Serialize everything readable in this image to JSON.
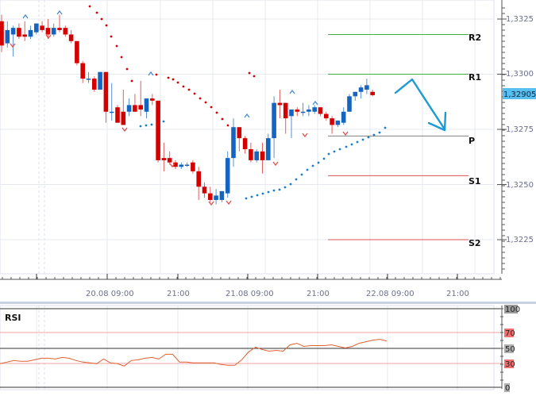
{
  "chart_data": [
    {
      "type": "candlestick",
      "title": "",
      "xlabel": "",
      "ylabel": "",
      "ylim": [
        1.3205,
        1.3335
      ],
      "y_ticks": [
        "1,3325",
        "1,3300",
        "1,3275",
        "1,3250",
        "1,3225"
      ],
      "y_tick_values": [
        1.3325,
        1.33,
        1.3275,
        1.325,
        1.3225
      ],
      "x_tick_labels": [
        "20.08 09:00",
        "21:00",
        "21.08 09:00",
        "21:00",
        "22.08 09:00",
        "21:00"
      ],
      "current_price": "1,32905",
      "colors": {
        "bull": "#1565c0",
        "bear": "#d40000",
        "sar_bear": "#d40000",
        "sar_bull": "#1a7fc4"
      },
      "candles": [
        {
          "o": 1.3324,
          "h": 1.3327,
          "l": 1.331,
          "c": 1.3313
        },
        {
          "o": 1.3314,
          "h": 1.3324,
          "l": 1.3312,
          "c": 1.332
        },
        {
          "o": 1.3318,
          "h": 1.3322,
          "l": 1.3308,
          "c": 1.3321
        },
        {
          "o": 1.3321,
          "h": 1.3323,
          "l": 1.3316,
          "c": 1.3317
        },
        {
          "o": 1.3318,
          "h": 1.3324,
          "l": 1.3315,
          "c": 1.3317
        },
        {
          "o": 1.3317,
          "h": 1.3322,
          "l": 1.3316,
          "c": 1.332
        },
        {
          "o": 1.3319,
          "h": 1.3323,
          "l": 1.3318,
          "c": 1.3323
        },
        {
          "o": 1.3322,
          "h": 1.3324,
          "l": 1.3319,
          "c": 1.332
        },
        {
          "o": 1.3321,
          "h": 1.3325,
          "l": 1.3316,
          "c": 1.3318
        },
        {
          "o": 1.3318,
          "h": 1.3323,
          "l": 1.3317,
          "c": 1.3321
        },
        {
          "o": 1.3321,
          "h": 1.3327,
          "l": 1.3319,
          "c": 1.332
        },
        {
          "o": 1.3321,
          "h": 1.3322,
          "l": 1.3317,
          "c": 1.3318
        },
        {
          "o": 1.3318,
          "h": 1.332,
          "l": 1.3314,
          "c": 1.3315
        },
        {
          "o": 1.3315,
          "h": 1.3315,
          "l": 1.3304,
          "c": 1.3305
        },
        {
          "o": 1.3305,
          "h": 1.3306,
          "l": 1.3296,
          "c": 1.3298
        },
        {
          "o": 1.3298,
          "h": 1.3301,
          "l": 1.3296,
          "c": 1.3298
        },
        {
          "o": 1.3298,
          "h": 1.3299,
          "l": 1.3292,
          "c": 1.3293
        },
        {
          "o": 1.3293,
          "h": 1.3301,
          "l": 1.3293,
          "c": 1.3301
        },
        {
          "o": 1.3301,
          "h": 1.3301,
          "l": 1.3278,
          "c": 1.3283
        },
        {
          "o": 1.3283,
          "h": 1.3296,
          "l": 1.3279,
          "c": 1.3283
        },
        {
          "o": 1.3285,
          "h": 1.3286,
          "l": 1.3282,
          "c": 1.3278
        },
        {
          "o": 1.3283,
          "h": 1.3293,
          "l": 1.3278,
          "c": 1.3277
        },
        {
          "o": 1.3283,
          "h": 1.3289,
          "l": 1.3281,
          "c": 1.3286
        },
        {
          "o": 1.3286,
          "h": 1.3291,
          "l": 1.3283,
          "c": 1.3283
        },
        {
          "o": 1.3286,
          "h": 1.3297,
          "l": 1.3281,
          "c": 1.3284
        },
        {
          "o": 1.3283,
          "h": 1.3289,
          "l": 1.328,
          "c": 1.3289
        },
        {
          "o": 1.3289,
          "h": 1.3291,
          "l": 1.3286,
          "c": 1.3288
        },
        {
          "o": 1.3288,
          "h": 1.3288,
          "l": 1.326,
          "c": 1.3261
        },
        {
          "o": 1.3262,
          "h": 1.3269,
          "l": 1.3256,
          "c": 1.3261
        },
        {
          "o": 1.3262,
          "h": 1.3265,
          "l": 1.3259,
          "c": 1.326
        },
        {
          "o": 1.326,
          "h": 1.3261,
          "l": 1.3257,
          "c": 1.3258
        },
        {
          "o": 1.3258,
          "h": 1.326,
          "l": 1.3257,
          "c": 1.3259
        },
        {
          "o": 1.3259,
          "h": 1.326,
          "l": 1.3258,
          "c": 1.3259
        },
        {
          "o": 1.326,
          "h": 1.3261,
          "l": 1.3255,
          "c": 1.3256
        },
        {
          "o": 1.3256,
          "h": 1.3258,
          "l": 1.3243,
          "c": 1.3249
        },
        {
          "o": 1.3249,
          "h": 1.3251,
          "l": 1.3244,
          "c": 1.3246
        },
        {
          "o": 1.3246,
          "h": 1.3249,
          "l": 1.3242,
          "c": 1.3243
        },
        {
          "o": 1.3243,
          "h": 1.3248,
          "l": 1.3241,
          "c": 1.3245
        },
        {
          "o": 1.3243,
          "h": 1.3247,
          "l": 1.3242,
          "c": 1.3247
        },
        {
          "o": 1.3246,
          "h": 1.3265,
          "l": 1.3244,
          "c": 1.3262
        },
        {
          "o": 1.3262,
          "h": 1.328,
          "l": 1.3258,
          "c": 1.3276
        },
        {
          "o": 1.3276,
          "h": 1.3276,
          "l": 1.3265,
          "c": 1.3271
        },
        {
          "o": 1.3271,
          "h": 1.3272,
          "l": 1.3264,
          "c": 1.3266
        },
        {
          "o": 1.3266,
          "h": 1.3269,
          "l": 1.326,
          "c": 1.3261
        },
        {
          "o": 1.3261,
          "h": 1.3266,
          "l": 1.326,
          "c": 1.3265
        },
        {
          "o": 1.3265,
          "h": 1.3269,
          "l": 1.3255,
          "c": 1.3261
        },
        {
          "o": 1.3261,
          "h": 1.3273,
          "l": 1.3261,
          "c": 1.3271
        },
        {
          "o": 1.3271,
          "h": 1.329,
          "l": 1.3262,
          "c": 1.3287
        },
        {
          "o": 1.3287,
          "h": 1.3293,
          "l": 1.328,
          "c": 1.3286
        },
        {
          "o": 1.3287,
          "h": 1.3287,
          "l": 1.3273,
          "c": 1.328
        },
        {
          "o": 1.3281,
          "h": 1.3284,
          "l": 1.3271,
          "c": 1.3284
        },
        {
          "o": 1.3284,
          "h": 1.3285,
          "l": 1.3281,
          "c": 1.3283
        },
        {
          "o": 1.3283,
          "h": 1.3287,
          "l": 1.3281,
          "c": 1.3283
        },
        {
          "o": 1.3283,
          "h": 1.3286,
          "l": 1.3281,
          "c": 1.3284
        },
        {
          "o": 1.3283,
          "h": 1.3286,
          "l": 1.3282,
          "c": 1.3285
        },
        {
          "o": 1.3285,
          "h": 1.3285,
          "l": 1.3281,
          "c": 1.3282
        },
        {
          "o": 1.3282,
          "h": 1.3283,
          "l": 1.3279,
          "c": 1.328
        },
        {
          "o": 1.328,
          "h": 1.3281,
          "l": 1.3273,
          "c": 1.3277
        },
        {
          "o": 1.3277,
          "h": 1.3279,
          "l": 1.3276,
          "c": 1.3279
        },
        {
          "o": 1.3278,
          "h": 1.3285,
          "l": 1.3277,
          "c": 1.3283
        },
        {
          "o": 1.3283,
          "h": 1.3291,
          "l": 1.3283,
          "c": 1.329
        },
        {
          "o": 1.329,
          "h": 1.3292,
          "l": 1.3288,
          "c": 1.3292
        },
        {
          "o": 1.3292,
          "h": 1.3295,
          "l": 1.3289,
          "c": 1.3294
        },
        {
          "o": 1.3293,
          "h": 1.3298,
          "l": 1.3291,
          "c": 1.3295
        },
        {
          "o": 1.3292,
          "h": 1.3293,
          "l": 1.329,
          "c": 1.32905
        }
      ],
      "pivot_levels": [
        {
          "name": "R2",
          "value": 1.3318,
          "color": "#3cb43c"
        },
        {
          "name": "R1",
          "value": 1.33,
          "color": "#3cb43c"
        },
        {
          "name": "P",
          "value": 1.3272,
          "color": "#808080"
        },
        {
          "name": "S1",
          "value": 1.3254,
          "color": "#e05050"
        },
        {
          "name": "S2",
          "value": 1.3225,
          "color": "#e05050"
        }
      ],
      "annotations": [
        "Blue forecast arrow: up to ~R1 then down toward P"
      ]
    },
    {
      "type": "line",
      "title": "RSI",
      "ylim": [
        0,
        100
      ],
      "y_ticks": [
        "100",
        "70",
        "50",
        "30",
        "0"
      ],
      "levels": [
        70,
        50,
        30
      ],
      "color": "#e06030",
      "values": [
        30,
        32,
        34,
        33,
        33,
        35,
        37,
        37,
        36,
        38,
        37,
        34,
        32,
        31,
        30,
        36,
        31,
        30,
        27,
        34,
        35,
        37,
        38,
        36,
        42,
        42,
        32,
        32,
        31,
        31,
        31,
        31,
        29,
        28,
        28,
        35,
        45,
        51,
        48,
        46,
        47,
        46,
        54,
        56,
        52,
        53,
        53,
        53,
        54,
        52,
        50,
        52,
        56,
        58,
        60,
        61,
        59
      ]
    }
  ],
  "main_chart": {
    "y_axis_labels": [
      "1,3325",
      "1,3300",
      "1,3275",
      "1,3250",
      "1,3225"
    ],
    "current_price_badge": "1,32905",
    "x_axis_labels": [
      "20.08 09:00",
      "21:00",
      "21.08 09:00",
      "21:00",
      "22.08 09:00",
      "21:00"
    ],
    "pivot_labels": [
      "R2",
      "R1",
      "P",
      "S1",
      "S2"
    ]
  },
  "rsi_panel": {
    "title": "RSI",
    "axis_labels": [
      "100",
      "70",
      "50",
      "30",
      "0"
    ]
  }
}
